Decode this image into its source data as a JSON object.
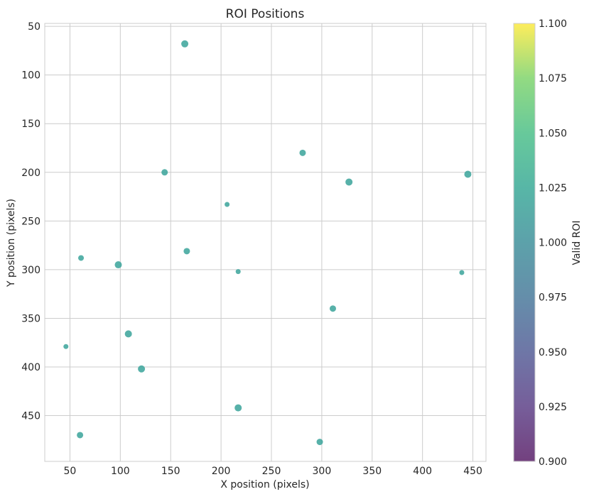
{
  "chart_data": {
    "type": "scatter",
    "title": "ROI Positions",
    "xlabel": "X position (pixels)",
    "ylabel": "Y position (pixels)",
    "xlim": [
      25,
      463
    ],
    "ylim": [
      497,
      47
    ],
    "y_inverted": true,
    "grid": true,
    "xticks": [
      50,
      100,
      150,
      200,
      250,
      300,
      350,
      400,
      450
    ],
    "yticks": [
      50,
      100,
      150,
      200,
      250,
      300,
      350,
      400,
      450
    ],
    "colorbar": {
      "label": "Valid ROI",
      "colormap": "viridis",
      "range": [
        0.9,
        1.1
      ],
      "ticks": [
        "0.900",
        "0.925",
        "0.950",
        "0.975",
        "1.000",
        "1.025",
        "1.050",
        "1.075",
        "1.100"
      ]
    },
    "point_color": "#3aa39a",
    "points": [
      {
        "x": 164,
        "y": 68,
        "size": 9
      },
      {
        "x": 281,
        "y": 180,
        "size": 8
      },
      {
        "x": 144,
        "y": 200,
        "size": 8
      },
      {
        "x": 445,
        "y": 202,
        "size": 9
      },
      {
        "x": 327,
        "y": 210,
        "size": 9
      },
      {
        "x": 206,
        "y": 233,
        "size": 6
      },
      {
        "x": 166,
        "y": 281,
        "size": 8
      },
      {
        "x": 61,
        "y": 288,
        "size": 7
      },
      {
        "x": 98,
        "y": 295,
        "size": 9
      },
      {
        "x": 217,
        "y": 302,
        "size": 6
      },
      {
        "x": 439,
        "y": 303,
        "size": 6
      },
      {
        "x": 311,
        "y": 340,
        "size": 8
      },
      {
        "x": 108,
        "y": 366,
        "size": 9
      },
      {
        "x": 46,
        "y": 379,
        "size": 6
      },
      {
        "x": 121,
        "y": 402,
        "size": 9
      },
      {
        "x": 217,
        "y": 442,
        "size": 9
      },
      {
        "x": 60,
        "y": 470,
        "size": 8
      },
      {
        "x": 298,
        "y": 477,
        "size": 8
      }
    ]
  }
}
